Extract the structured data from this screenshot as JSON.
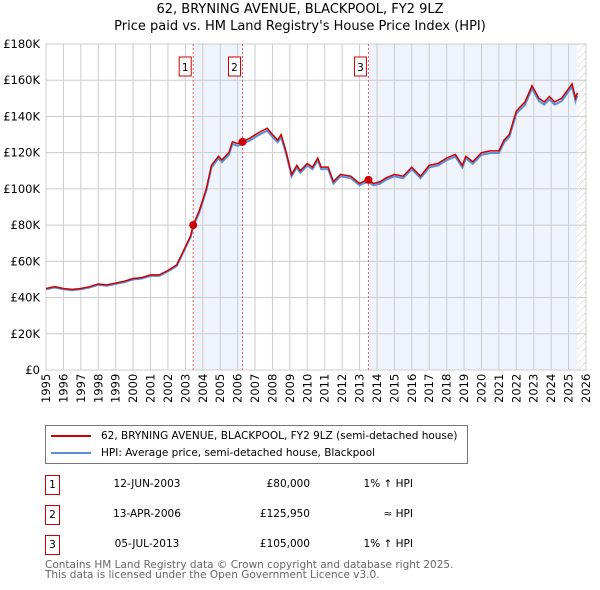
{
  "chart_data": {
    "type": "line",
    "title": "62, BRYNING AVENUE, BLACKPOOL, FY2 9LZ",
    "subtitle": "Price paid vs. HM Land Registry's House Price Index (HPI)",
    "xlim": [
      1995,
      2026
    ],
    "ylim": [
      0,
      180000
    ],
    "x_ticks": [
      "1995",
      "1996",
      "1997",
      "1998",
      "1999",
      "2000",
      "2001",
      "2002",
      "2003",
      "2004",
      "2005",
      "2006",
      "2007",
      "2008",
      "2009",
      "2010",
      "2011",
      "2012",
      "2013",
      "2014",
      "2015",
      "2016",
      "2017",
      "2018",
      "2019",
      "2020",
      "2021",
      "2022",
      "2023",
      "2024",
      "2025",
      "2026"
    ],
    "y_ticks": [
      {
        "v": 0,
        "label": "£0"
      },
      {
        "v": 20000,
        "label": "£20K"
      },
      {
        "v": 40000,
        "label": "£40K"
      },
      {
        "v": 60000,
        "label": "£60K"
      },
      {
        "v": 80000,
        "label": "£80K"
      },
      {
        "v": 100000,
        "label": "£100K"
      },
      {
        "v": 120000,
        "label": "£120K"
      },
      {
        "v": 140000,
        "label": "£140K"
      },
      {
        "v": 160000,
        "label": "£160K"
      },
      {
        "v": 180000,
        "label": "£180K"
      }
    ],
    "grid": true,
    "series": [
      {
        "name": "62, BRYNING AVENUE, BLACKPOOL, FY2 9LZ (semi-detached house)",
        "color": "#cc0000",
        "x": [
          1995,
          1995.5,
          1996,
          1996.5,
          1997,
          1997.5,
          1998,
          1998.5,
          1999,
          1999.5,
          2000,
          2000.5,
          2001,
          2001.5,
          2002,
          2002.5,
          2003,
          2003.3,
          2003.45,
          2003.8,
          2004.2,
          2004.5,
          2004.9,
          2005.1,
          2005.5,
          2005.7,
          2006,
          2006.28,
          2006.7,
          2007.2,
          2007.7,
          2008,
          2008.3,
          2008.5,
          2008.8,
          2009.1,
          2009.4,
          2009.6,
          2010,
          2010.3,
          2010.6,
          2010.8,
          2011.2,
          2011.5,
          2011.9,
          2012.5,
          2013,
          2013.2,
          2013.5,
          2013.8,
          2014.2,
          2014.5,
          2015,
          2015.5,
          2016,
          2016.5,
          2017,
          2017.5,
          2018,
          2018.5,
          2018.9,
          2019.1,
          2019.5,
          2020,
          2020.5,
          2021,
          2021.3,
          2021.6,
          2022,
          2022.5,
          2022.9,
          2023.3,
          2023.6,
          2023.9,
          2024.2,
          2024.6,
          2024.9,
          2025.2,
          2025.4,
          2025.5
        ],
        "y": [
          45000,
          46000,
          45000,
          44500,
          45000,
          46000,
          47500,
          47000,
          48000,
          49000,
          50500,
          51000,
          52500,
          52500,
          55000,
          58000,
          68000,
          74000,
          80000,
          88000,
          100000,
          113000,
          118000,
          116000,
          120000,
          126000,
          125000,
          126000,
          128000,
          131000,
          133500,
          130000,
          127000,
          130000,
          120000,
          108000,
          113000,
          110000,
          114000,
          112000,
          117000,
          112000,
          112000,
          104000,
          108000,
          107000,
          103000,
          104000,
          105000,
          103000,
          104000,
          106000,
          108000,
          107000,
          112000,
          107000,
          113000,
          114000,
          117000,
          119000,
          113000,
          118000,
          115000,
          120000,
          121000,
          121000,
          127000,
          130000,
          143000,
          148000,
          157000,
          150000,
          148000,
          151000,
          148000,
          150000,
          154000,
          158000,
          150000,
          153000
        ]
      },
      {
        "name": "HPI: Average price, semi-detached house, Blackpool",
        "color": "#5b8fd6",
        "offset_pct": -1
      }
    ],
    "sales": [
      {
        "n": "1",
        "x": 2003.45,
        "y": 80000
      },
      {
        "n": "2",
        "x": 2006.28,
        "y": 125950
      },
      {
        "n": "3",
        "x": 2013.51,
        "y": 105000
      }
    ],
    "shaded_ranges": [
      [
        2003.45,
        2006.28
      ],
      [
        2013.51,
        2025.5
      ]
    ],
    "hatched_from": 2025.5
  },
  "legend": {
    "property": "62, BRYNING AVENUE, BLACKPOOL, FY2 9LZ (semi-detached house)",
    "hpi": "HPI: Average price, semi-detached house, Blackpool"
  },
  "transactions": [
    {
      "n": "1",
      "date": "12-JUN-2003",
      "price": "£80,000",
      "vs": "1% ↑ HPI"
    },
    {
      "n": "2",
      "date": "13-APR-2006",
      "price": "£125,950",
      "vs": "≈ HPI"
    },
    {
      "n": "3",
      "date": "05-JUL-2013",
      "price": "£105,000",
      "vs": "1% ↑ HPI"
    }
  ],
  "footer": [
    "Contains HM Land Registry data © Crown copyright and database right 2025.",
    "This data is licensed under the Open Government Licence v3.0."
  ]
}
